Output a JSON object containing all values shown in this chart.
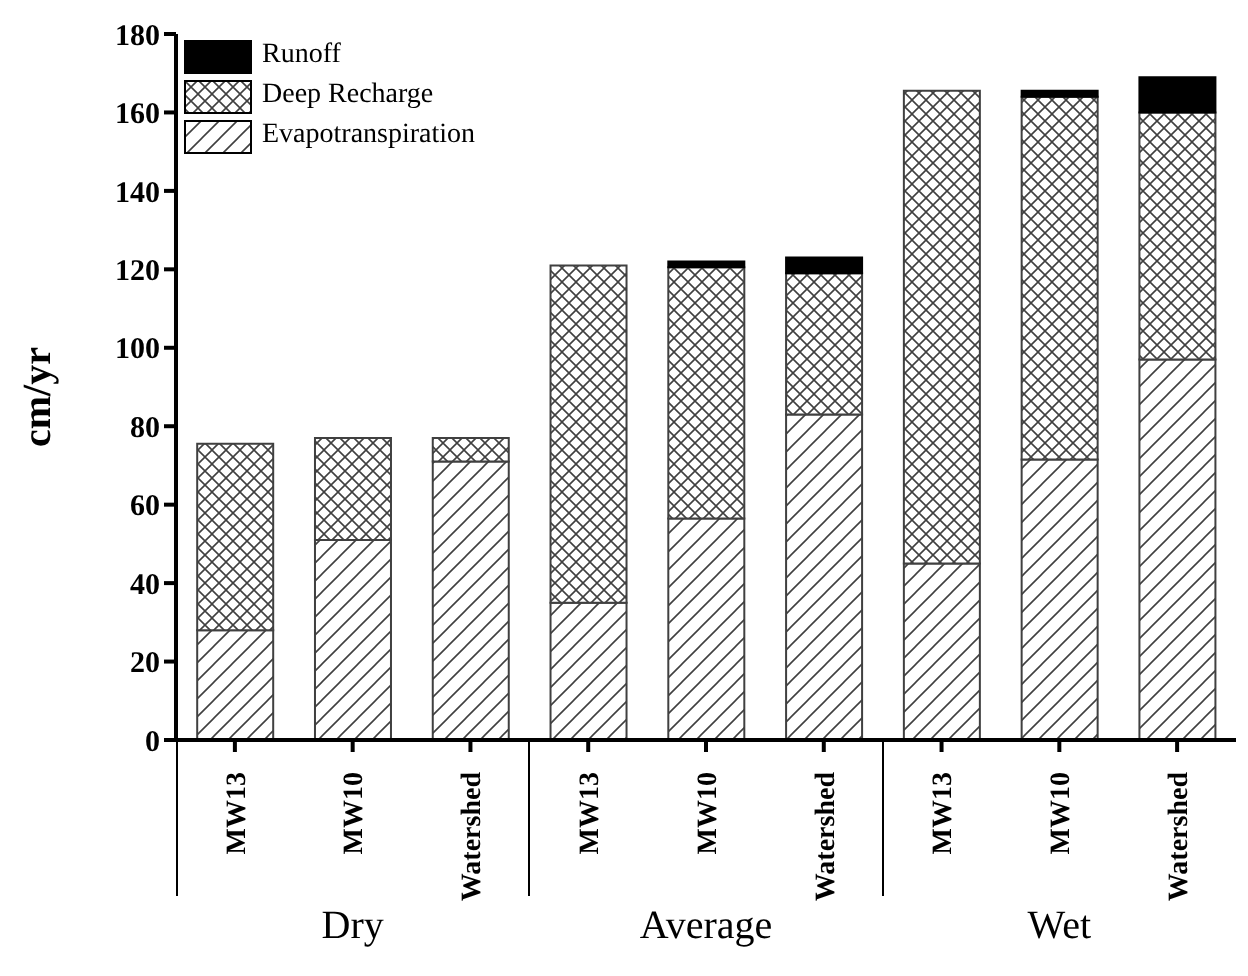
{
  "chart_data": {
    "type": "bar",
    "ylabel": "cm/yr",
    "categories": [
      "MW13",
      "MW10",
      "Watershed",
      "MW13",
      "MW10",
      "Watershed",
      "MW13",
      "MW10",
      "Watershed"
    ],
    "stacked": true,
    "ylim": [
      0,
      180
    ],
    "yticks": [
      0,
      20,
      40,
      60,
      80,
      100,
      120,
      140,
      160,
      180
    ],
    "legend": "top left",
    "grid": false,
    "series": [
      {
        "name": "Evapotranspiration",
        "color": "#404040",
        "values": [
          28,
          51,
          71,
          35,
          56.5,
          83,
          45,
          71.5,
          97
        ]
      },
      {
        "name": "Deep Recharge",
        "color": "#404040",
        "values": [
          47.5,
          26,
          6,
          86,
          64,
          36,
          120.5,
          92.5,
          63
        ]
      },
      {
        "name": "Runoff",
        "color": "#000000",
        "values": [
          0,
          0,
          0,
          0,
          1.5,
          4,
          0,
          1.5,
          9
        ]
      }
    ],
    "annotations": [
      "Dry",
      "Average",
      "Wet"
    ]
  }
}
